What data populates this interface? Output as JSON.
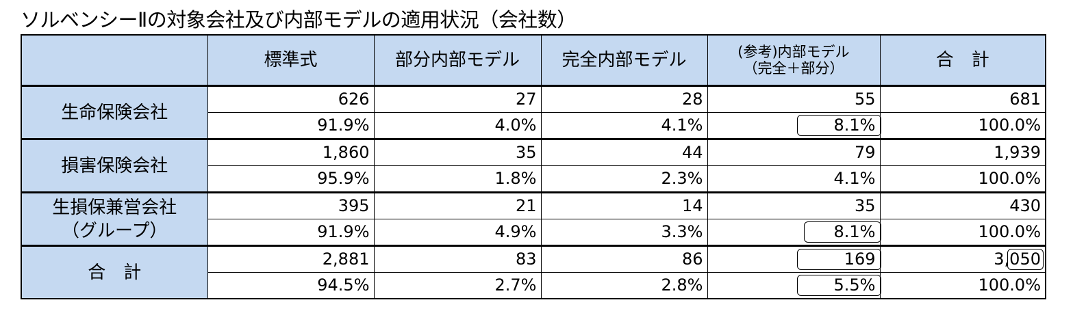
{
  "title": "ソルベンシーⅡの対象会社及び内部モデルの適用状況（会社数）",
  "headers": {
    "col1": "標準式",
    "col2": "部分内部モデル",
    "col3": "完全内部モデル",
    "col4_line1": "(参考)内部モデル",
    "col4_line2": "（完全＋部分）",
    "col5": "合　計"
  },
  "rows": [
    {
      "label_line1": "生命保険会社",
      "label_line2": "",
      "counts": [
        "626",
        "27",
        "28",
        "55",
        "681"
      ],
      "percents": [
        "91.9%",
        "4.0%",
        "4.1%",
        "8.1%",
        "100.0%"
      ]
    },
    {
      "label_line1": "損害保険会社",
      "label_line2": "",
      "counts": [
        "1,860",
        "35",
        "44",
        "79",
        "1,939"
      ],
      "percents": [
        "95.9%",
        "1.8%",
        "2.3%",
        "4.1%",
        "100.0%"
      ]
    },
    {
      "label_line1": "生損保兼営会社",
      "label_line2": "（グループ）",
      "counts": [
        "395",
        "21",
        "14",
        "35",
        "430"
      ],
      "percents": [
        "91.9%",
        "4.9%",
        "3.3%",
        "8.1%",
        "100.0%"
      ]
    },
    {
      "label_line1": "合　計",
      "label_line2": "",
      "counts": [
        "2,881",
        "83",
        "86",
        "169",
        "3,050"
      ],
      "percents": [
        "94.5%",
        "2.7%",
        "2.8%",
        "5.5%",
        "100.0%"
      ]
    }
  ]
}
